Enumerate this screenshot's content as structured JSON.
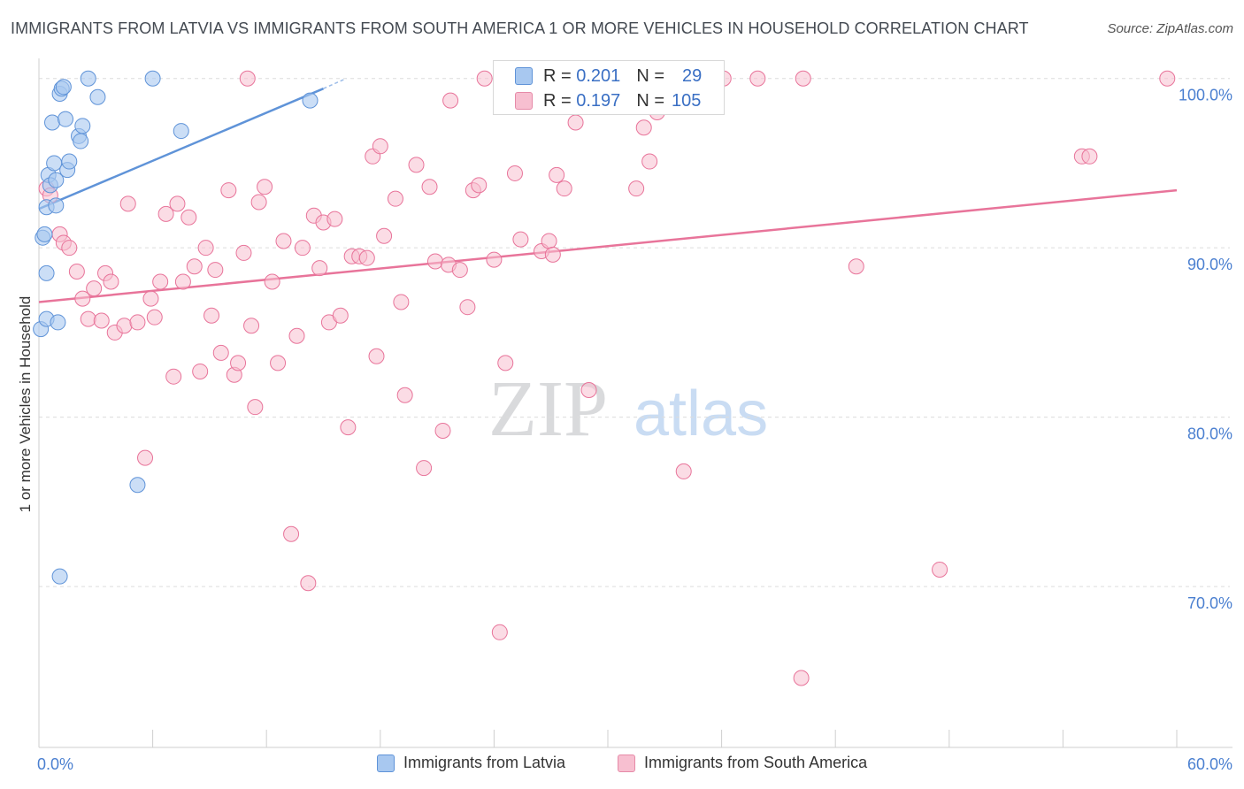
{
  "title": "IMMIGRANTS FROM LATVIA VS IMMIGRANTS FROM SOUTH AMERICA 1 OR MORE VEHICLES IN HOUSEHOLD CORRELATION CHART",
  "source": "Source: ZipAtlas.com",
  "watermark": {
    "zip": "ZIP",
    "atlas": "atlas"
  },
  "legend": {
    "rows": [
      {
        "r_label": "R =",
        "r_value": "0.201",
        "n_label": "N =",
        "n_value": "29",
        "color": "#a8c8f0",
        "border": "#5f93d8"
      },
      {
        "r_label": "R =",
        "r_value": "0.197",
        "n_label": "N =",
        "n_value": "105",
        "color": "#f7bfd0",
        "border": "#e68aa8"
      }
    ]
  },
  "bottom_legend": {
    "latvia": "Immigrants from Latvia",
    "south_america": "Immigrants from South America"
  },
  "chart_data": {
    "type": "scatter",
    "title": "IMMIGRANTS FROM LATVIA VS IMMIGRANTS FROM SOUTH AMERICA 1 OR MORE VEHICLES IN HOUSEHOLD CORRELATION CHART",
    "ylabel": "1 or more Vehicles in Household",
    "xlabel": "",
    "xlim": [
      0,
      60
    ],
    "ylim": [
      60.5,
      101.5
    ],
    "x_tick_labels": [
      "0.0%",
      "60.0%"
    ],
    "y_ticks": [
      70,
      80,
      90,
      100
    ],
    "y_tick_labels": [
      "70.0%",
      "80.0%",
      "90.0%",
      "100.0%"
    ],
    "grid": true,
    "legend_placement": "top-center",
    "series": [
      {
        "name": "Immigrants from Latvia",
        "color": "#5f93d8",
        "fill": "#a8c8f0",
        "trend": {
          "x": [
            0,
            15
          ],
          "y": [
            92.3,
            99.4
          ],
          "dashed_to": [
            16.2,
            100.0
          ]
        },
        "points": [
          [
            0.1,
            85.2
          ],
          [
            0.2,
            90.6
          ],
          [
            0.3,
            90.8
          ],
          [
            0.4,
            88.5
          ],
          [
            0.4,
            92.4
          ],
          [
            0.4,
            85.8
          ],
          [
            0.5,
            94.3
          ],
          [
            0.6,
            93.7
          ],
          [
            0.7,
            97.4
          ],
          [
            0.8,
            95.0
          ],
          [
            0.9,
            94.0
          ],
          [
            1.0,
            85.6
          ],
          [
            1.1,
            99.1
          ],
          [
            1.2,
            99.4
          ],
          [
            1.3,
            99.5
          ],
          [
            1.4,
            97.6
          ],
          [
            1.5,
            94.6
          ],
          [
            1.6,
            95.1
          ],
          [
            2.1,
            96.6
          ],
          [
            2.2,
            96.3
          ],
          [
            2.3,
            97.2
          ],
          [
            2.6,
            100.0
          ],
          [
            3.1,
            98.9
          ],
          [
            6.0,
            100.0
          ],
          [
            7.5,
            96.9
          ],
          [
            14.3,
            98.7
          ],
          [
            5.2,
            76.0
          ],
          [
            1.1,
            70.6
          ],
          [
            0.9,
            92.5
          ]
        ]
      },
      {
        "name": "Immigrants from South America",
        "color": "#e8749a",
        "fill": "#f7bfd0",
        "trend": {
          "x": [
            0,
            60
          ],
          "y": [
            86.8,
            93.4
          ]
        },
        "points": [
          [
            0.4,
            93.5
          ],
          [
            0.6,
            93.1
          ],
          [
            1.1,
            90.8
          ],
          [
            1.3,
            90.3
          ],
          [
            1.6,
            90.0
          ],
          [
            2.0,
            88.6
          ],
          [
            2.3,
            87.0
          ],
          [
            2.6,
            85.8
          ],
          [
            2.9,
            87.6
          ],
          [
            3.3,
            85.7
          ],
          [
            3.5,
            88.5
          ],
          [
            3.8,
            88.0
          ],
          [
            4.0,
            85.0
          ],
          [
            4.5,
            85.4
          ],
          [
            4.7,
            92.6
          ],
          [
            5.2,
            85.6
          ],
          [
            5.6,
            77.6
          ],
          [
            5.9,
            87.0
          ],
          [
            6.1,
            85.9
          ],
          [
            6.4,
            88.0
          ],
          [
            6.7,
            92.0
          ],
          [
            7.1,
            82.4
          ],
          [
            7.3,
            92.6
          ],
          [
            7.6,
            88.0
          ],
          [
            7.9,
            91.8
          ],
          [
            8.2,
            88.9
          ],
          [
            8.5,
            82.7
          ],
          [
            8.8,
            90.0
          ],
          [
            9.1,
            86.0
          ],
          [
            9.3,
            88.7
          ],
          [
            9.6,
            83.8
          ],
          [
            10.0,
            93.4
          ],
          [
            10.3,
            82.5
          ],
          [
            10.5,
            83.2
          ],
          [
            10.8,
            89.7
          ],
          [
            11.2,
            85.4
          ],
          [
            11.4,
            80.6
          ],
          [
            11.6,
            92.7
          ],
          [
            11.9,
            93.6
          ],
          [
            12.3,
            88.0
          ],
          [
            12.6,
            83.2
          ],
          [
            12.9,
            90.4
          ],
          [
            13.3,
            73.1
          ],
          [
            13.6,
            84.8
          ],
          [
            13.9,
            90.0
          ],
          [
            14.2,
            70.2
          ],
          [
            14.5,
            91.9
          ],
          [
            14.8,
            88.8
          ],
          [
            15.0,
            91.5
          ],
          [
            15.3,
            85.6
          ],
          [
            15.6,
            91.7
          ],
          [
            15.9,
            86.0
          ],
          [
            16.3,
            79.4
          ],
          [
            16.5,
            89.5
          ],
          [
            16.9,
            89.5
          ],
          [
            17.3,
            89.4
          ],
          [
            17.6,
            95.4
          ],
          [
            17.8,
            83.6
          ],
          [
            18.0,
            96.0
          ],
          [
            18.2,
            90.7
          ],
          [
            18.8,
            92.9
          ],
          [
            19.1,
            86.8
          ],
          [
            19.3,
            81.3
          ],
          [
            19.9,
            94.9
          ],
          [
            20.3,
            77.0
          ],
          [
            20.6,
            93.6
          ],
          [
            20.9,
            89.2
          ],
          [
            21.3,
            79.2
          ],
          [
            21.6,
            89.0
          ],
          [
            22.2,
            88.7
          ],
          [
            22.6,
            86.5
          ],
          [
            22.9,
            93.4
          ],
          [
            23.2,
            93.7
          ],
          [
            23.5,
            100.0
          ],
          [
            24.0,
            89.3
          ],
          [
            24.3,
            67.3
          ],
          [
            24.6,
            83.2
          ],
          [
            25.1,
            94.4
          ],
          [
            25.4,
            90.5
          ],
          [
            26.0,
            99.3
          ],
          [
            26.5,
            89.8
          ],
          [
            26.9,
            90.4
          ],
          [
            27.1,
            89.6
          ],
          [
            27.3,
            94.3
          ],
          [
            27.7,
            93.5
          ],
          [
            28.3,
            97.4
          ],
          [
            29.0,
            81.6
          ],
          [
            31.0,
            100.0
          ],
          [
            31.5,
            93.5
          ],
          [
            31.9,
            97.1
          ],
          [
            32.2,
            95.1
          ],
          [
            32.6,
            98.0
          ],
          [
            33.6,
            100.0
          ],
          [
            34.0,
            76.8
          ],
          [
            36.1,
            100.0
          ],
          [
            37.9,
            100.0
          ],
          [
            40.2,
            64.6
          ],
          [
            40.3,
            100.0
          ],
          [
            43.1,
            88.9
          ],
          [
            47.5,
            71.0
          ],
          [
            55.0,
            95.4
          ],
          [
            55.4,
            95.4
          ],
          [
            59.5,
            100.0
          ],
          [
            21.7,
            98.7
          ],
          [
            11.0,
            100.0
          ]
        ]
      }
    ]
  }
}
